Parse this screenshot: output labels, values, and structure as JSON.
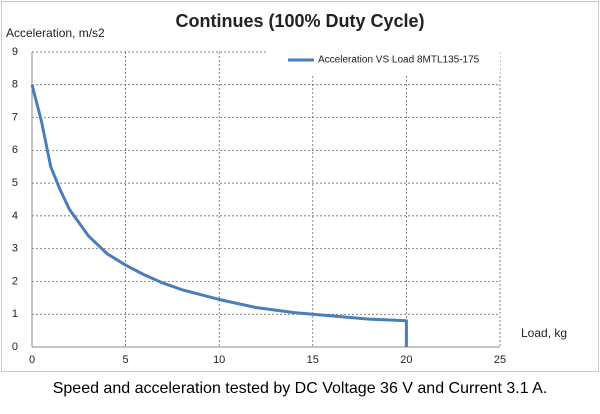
{
  "chart_data": {
    "type": "line",
    "title": "Continues (100% Duty Cycle)",
    "y_label": "Acceleration, m/s2",
    "x_label": "Load, kg",
    "x": [
      0,
      0.5,
      1,
      1.5,
      2,
      3,
      4,
      5,
      6,
      7,
      8,
      10,
      12,
      14,
      16,
      18,
      20,
      20
    ],
    "series": [
      {
        "name": "Acceleration VS Load 8MTL135-175",
        "color": "#4a7ebb",
        "values": [
          8,
          6.9,
          5.5,
          4.8,
          4.2,
          3.4,
          2.85,
          2.5,
          2.2,
          1.95,
          1.75,
          1.45,
          1.2,
          1.05,
          0.95,
          0.85,
          0.8,
          0
        ]
      }
    ],
    "xlim": [
      0,
      25
    ],
    "xticks": [
      0,
      5,
      10,
      15,
      20,
      25
    ],
    "ylim": [
      0,
      9
    ],
    "yticks": [
      0,
      1,
      2,
      3,
      4,
      5,
      6,
      7,
      8,
      9
    ],
    "grid": true,
    "legend": "upper right"
  },
  "caption": "Speed and acceleration tested  by DC Voltage 36 V and Current 3.1 A."
}
